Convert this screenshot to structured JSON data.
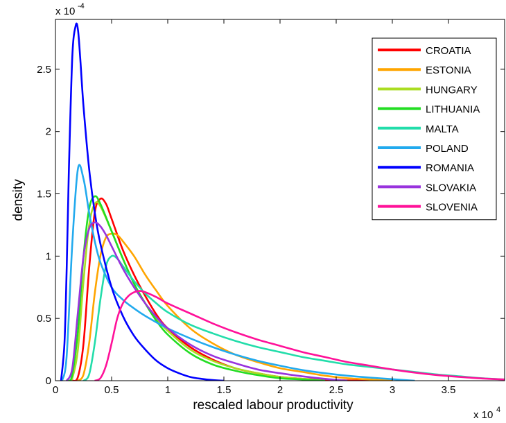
{
  "chart_data": {
    "type": "line",
    "title": "",
    "xlabel": "rescaled labour productivity",
    "ylabel": "density",
    "x_multiplier_label": "x 10",
    "x_multiplier_exp": "4",
    "y_multiplier_label": "x 10",
    "y_multiplier_exp": "-4",
    "xlim": [
      0,
      4
    ],
    "ylim": [
      0,
      2.9
    ],
    "x_ticks": [
      0,
      0.5,
      1,
      1.5,
      2,
      2.5,
      3,
      3.5
    ],
    "x_tick_labels": [
      "0",
      "0.5",
      "1",
      "1.5",
      "2",
      "2.5",
      "3",
      "3.5"
    ],
    "y_ticks": [
      0,
      0.5,
      1,
      1.5,
      2,
      2.5
    ],
    "y_tick_labels": [
      "0",
      "0.5",
      "1",
      "1.5",
      "2",
      "2.5"
    ],
    "grid": false,
    "legend_position": "top-right",
    "series": [
      {
        "name": "CROATIA",
        "color": "#ff0000",
        "x": [
          0.15,
          0.2,
          0.25,
          0.3,
          0.35,
          0.4,
          0.45,
          0.5,
          0.6,
          0.7,
          0.8,
          0.9,
          1.0,
          1.2,
          1.4,
          1.6,
          1.8,
          2.0,
          2.2,
          2.4,
          2.6,
          2.8
        ],
        "y": [
          0,
          0.03,
          0.3,
          0.9,
          1.35,
          1.46,
          1.42,
          1.3,
          1.05,
          0.85,
          0.68,
          0.53,
          0.42,
          0.27,
          0.17,
          0.1,
          0.06,
          0.03,
          0.015,
          0.007,
          0.003,
          0
        ]
      },
      {
        "name": "ESTONIA",
        "color": "#ffa500",
        "x": [
          0.2,
          0.25,
          0.3,
          0.35,
          0.4,
          0.45,
          0.5,
          0.55,
          0.6,
          0.7,
          0.8,
          0.9,
          1.0,
          1.2,
          1.4,
          1.6,
          1.8,
          2.0,
          2.2,
          2.4,
          2.6,
          2.8,
          3.0
        ],
        "y": [
          0,
          0.05,
          0.3,
          0.7,
          1.0,
          1.15,
          1.18,
          1.17,
          1.12,
          1.0,
          0.85,
          0.72,
          0.6,
          0.42,
          0.3,
          0.21,
          0.15,
          0.1,
          0.07,
          0.04,
          0.02,
          0.01,
          0
        ]
      },
      {
        "name": "HUNGARY",
        "color": "#aadd22",
        "x": [
          0.12,
          0.15,
          0.2,
          0.25,
          0.3,
          0.35,
          0.4,
          0.5,
          0.6,
          0.7,
          0.8,
          0.9,
          1.0,
          1.2,
          1.4,
          1.6,
          1.8,
          2.0,
          2.2,
          2.4
        ],
        "y": [
          0,
          0.02,
          0.25,
          0.8,
          1.25,
          1.42,
          1.4,
          1.2,
          0.98,
          0.78,
          0.62,
          0.5,
          0.4,
          0.25,
          0.16,
          0.1,
          0.06,
          0.03,
          0.015,
          0
        ]
      },
      {
        "name": "LITHUANIA",
        "color": "#22dd22",
        "x": [
          0.12,
          0.15,
          0.2,
          0.25,
          0.3,
          0.35,
          0.4,
          0.5,
          0.6,
          0.7,
          0.8,
          0.9,
          1.0,
          1.2,
          1.4,
          1.6,
          1.8,
          2.0,
          2.2,
          2.4
        ],
        "y": [
          0,
          0.05,
          0.4,
          1.0,
          1.38,
          1.48,
          1.42,
          1.2,
          0.98,
          0.78,
          0.62,
          0.48,
          0.37,
          0.22,
          0.13,
          0.08,
          0.045,
          0.02,
          0.01,
          0
        ]
      },
      {
        "name": "MALTA",
        "color": "#22ddaa",
        "x": [
          0.25,
          0.3,
          0.35,
          0.4,
          0.45,
          0.5,
          0.55,
          0.6,
          0.7,
          0.8,
          0.9,
          1.0,
          1.2,
          1.4,
          1.6,
          1.8,
          2.0,
          2.2,
          2.4,
          2.6,
          2.8,
          3.0,
          3.2,
          3.4,
          3.6,
          3.8,
          4.0
        ],
        "y": [
          0,
          0.05,
          0.3,
          0.65,
          0.92,
          1.0,
          0.98,
          0.92,
          0.8,
          0.7,
          0.62,
          0.55,
          0.45,
          0.38,
          0.32,
          0.27,
          0.23,
          0.19,
          0.16,
          0.13,
          0.11,
          0.09,
          0.07,
          0.05,
          0.035,
          0.02,
          0.01
        ]
      },
      {
        "name": "POLAND",
        "color": "#22aaee",
        "x": [
          0.06,
          0.1,
          0.15,
          0.2,
          0.25,
          0.3,
          0.35,
          0.4,
          0.5,
          0.6,
          0.7,
          0.8,
          1.0,
          1.2,
          1.4,
          1.6,
          1.8,
          2.0,
          2.2,
          2.4,
          2.6,
          2.8,
          3.0,
          3.2
        ],
        "y": [
          0,
          0.2,
          1.1,
          1.7,
          1.62,
          1.35,
          1.12,
          0.95,
          0.75,
          0.65,
          0.58,
          0.52,
          0.42,
          0.34,
          0.27,
          0.21,
          0.16,
          0.12,
          0.085,
          0.06,
          0.04,
          0.025,
          0.012,
          0
        ]
      },
      {
        "name": "ROMANIA",
        "color": "#0000ff",
        "x": [
          0.05,
          0.08,
          0.1,
          0.12,
          0.15,
          0.18,
          0.2,
          0.22,
          0.25,
          0.3,
          0.35,
          0.4,
          0.5,
          0.6,
          0.7,
          0.8,
          0.9,
          1.0,
          1.1,
          1.2,
          1.3,
          1.4,
          1.5
        ],
        "y": [
          0,
          0.3,
          0.9,
          1.7,
          2.6,
          2.85,
          2.82,
          2.6,
          2.2,
          1.7,
          1.35,
          1.1,
          0.75,
          0.52,
          0.36,
          0.25,
          0.16,
          0.1,
          0.06,
          0.03,
          0.015,
          0.005,
          0
        ]
      },
      {
        "name": "SLOVAKIA",
        "color": "#9933dd",
        "x": [
          0.1,
          0.15,
          0.2,
          0.25,
          0.3,
          0.35,
          0.4,
          0.45,
          0.5,
          0.6,
          0.7,
          0.8,
          0.9,
          1.0,
          1.2,
          1.4,
          1.6,
          1.8,
          2.0,
          2.2,
          2.4,
          2.6
        ],
        "y": [
          0,
          0.1,
          0.55,
          1.0,
          1.22,
          1.27,
          1.24,
          1.17,
          1.08,
          0.9,
          0.75,
          0.62,
          0.51,
          0.42,
          0.29,
          0.2,
          0.14,
          0.09,
          0.06,
          0.035,
          0.015,
          0
        ]
      },
      {
        "name": "SLOVENIA",
        "color": "#ff1199",
        "x": [
          0.35,
          0.4,
          0.45,
          0.5,
          0.55,
          0.6,
          0.65,
          0.7,
          0.75,
          0.8,
          0.9,
          1.0,
          1.2,
          1.4,
          1.6,
          1.8,
          2.0,
          2.2,
          2.4,
          2.6,
          2.8,
          3.0,
          3.2,
          3.4,
          3.6,
          3.8,
          4.0
        ],
        "y": [
          0,
          0.02,
          0.12,
          0.3,
          0.5,
          0.62,
          0.68,
          0.71,
          0.72,
          0.71,
          0.67,
          0.62,
          0.54,
          0.46,
          0.39,
          0.33,
          0.28,
          0.23,
          0.19,
          0.15,
          0.12,
          0.09,
          0.065,
          0.045,
          0.03,
          0.018,
          0.01
        ]
      }
    ]
  }
}
